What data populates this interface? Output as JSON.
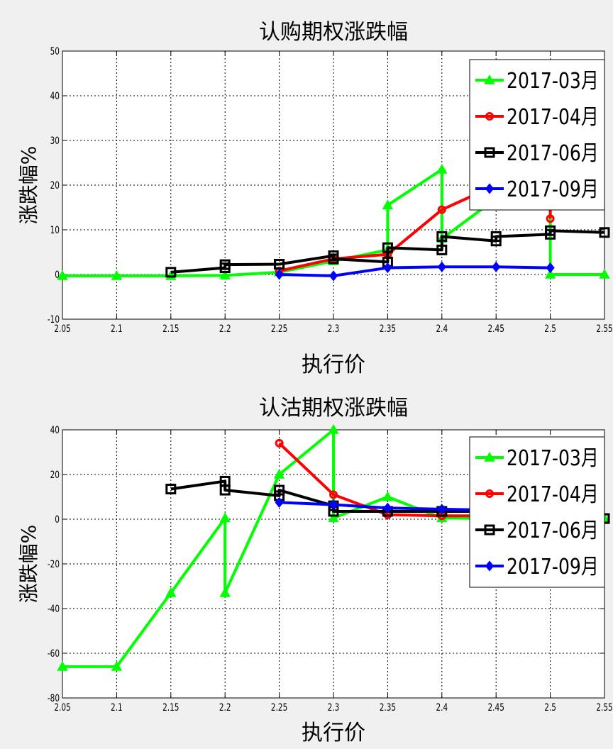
{
  "chart_data": [
    {
      "type": "line",
      "title": "认购期权涨跌幅",
      "xlabel": "执行价",
      "ylabel": "涨跌幅%",
      "xlim": [
        2.05,
        2.55
      ],
      "ylim": [
        -10,
        50
      ],
      "xticks": [
        "2.05",
        "2.1",
        "2.15",
        "2.2",
        "2.25",
        "2.3",
        "2.35",
        "2.4",
        "2.45",
        "2.5",
        "2.55"
      ],
      "yticks": [
        "-10",
        "0",
        "10",
        "20",
        "30",
        "40",
        "50"
      ],
      "grid": true,
      "legend_position": "top-right",
      "series": [
        {
          "name": "2017-03月",
          "color": "#00ff00",
          "marker": "triangle",
          "x": [
            2.05,
            2.1,
            2.15,
            2.2,
            2.25,
            2.3,
            2.35,
            2.35,
            2.4,
            2.4,
            2.45,
            2.5,
            2.5,
            2.55
          ],
          "y": [
            -0.3,
            -0.3,
            -0.3,
            -0.2,
            0.5,
            3,
            5.5,
            15.5,
            23.5,
            8,
            17,
            16,
            0,
            0
          ]
        },
        {
          "name": "2017-04月",
          "color": "#ff0000",
          "marker": "circle",
          "x": [
            2.25,
            2.3,
            2.35,
            2.4,
            2.45,
            2.5,
            2.5
          ],
          "y": [
            0.8,
            3.5,
            4.5,
            14.5,
            20,
            18,
            12.5
          ]
        },
        {
          "name": "2017-06月",
          "color": "#000000",
          "marker": "square",
          "x": [
            2.15,
            2.2,
            2.2,
            2.25,
            2.25,
            2.3,
            2.3,
            2.35,
            2.35,
            2.4,
            2.4,
            2.45,
            2.45,
            2.5,
            2.5,
            2.55
          ],
          "y": [
            0.5,
            1.5,
            2.2,
            2.3,
            2.3,
            4.2,
            3.5,
            2.8,
            6,
            5.5,
            8.5,
            7.5,
            8.5,
            9,
            9.8,
            9.4
          ]
        },
        {
          "name": "2017-09月",
          "color": "#0000ff",
          "marker": "diamond",
          "x": [
            2.25,
            2.3,
            2.35,
            2.4,
            2.45,
            2.5
          ],
          "y": [
            0,
            -0.3,
            1.5,
            1.7,
            1.7,
            1.5
          ]
        }
      ]
    },
    {
      "type": "line",
      "title": "认沽期权涨跌幅",
      "xlabel": "执行价",
      "ylabel": "涨跌幅%",
      "xlim": [
        2.05,
        2.55
      ],
      "ylim": [
        -80,
        40
      ],
      "xticks": [
        "2.05",
        "2.1",
        "2.15",
        "2.2",
        "2.25",
        "2.3",
        "2.35",
        "2.4",
        "2.45",
        "2.5",
        "2.55"
      ],
      "yticks": [
        "-80",
        "-60",
        "-40",
        "-20",
        "0",
        "20",
        "40"
      ],
      "grid": true,
      "legend_position": "top-right",
      "series": [
        {
          "name": "2017-03月",
          "color": "#00ff00",
          "marker": "triangle",
          "x": [
            2.05,
            2.1,
            2.15,
            2.2,
            2.2,
            2.25,
            2.3,
            2.3,
            2.35,
            2.4,
            2.45,
            2.5,
            2.55
          ],
          "y": [
            -66,
            -66,
            -33,
            0.5,
            -33,
            20,
            40,
            0.5,
            10,
            0.5,
            0.3,
            0.3,
            0.3
          ]
        },
        {
          "name": "2017-04月",
          "color": "#ff0000",
          "marker": "circle",
          "x": [
            2.25,
            2.3,
            2.35,
            2.4,
            2.45
          ],
          "y": [
            34,
            11,
            2,
            1.5,
            1.5
          ]
        },
        {
          "name": "2017-06月",
          "color": "#000000",
          "marker": "square",
          "x": [
            2.15,
            2.2,
            2.2,
            2.25,
            2.25,
            2.3,
            2.3,
            2.35,
            2.4,
            2.45,
            2.55
          ],
          "y": [
            13.5,
            17,
            13,
            10.5,
            13,
            6,
            3.5,
            3.5,
            3.5,
            3.5,
            0.3
          ]
        },
        {
          "name": "2017-09月",
          "color": "#0000ff",
          "marker": "diamond",
          "x": [
            2.25,
            2.3,
            2.35,
            2.4,
            2.45
          ],
          "y": [
            7.5,
            6.5,
            5,
            4.5,
            4
          ]
        }
      ]
    }
  ]
}
